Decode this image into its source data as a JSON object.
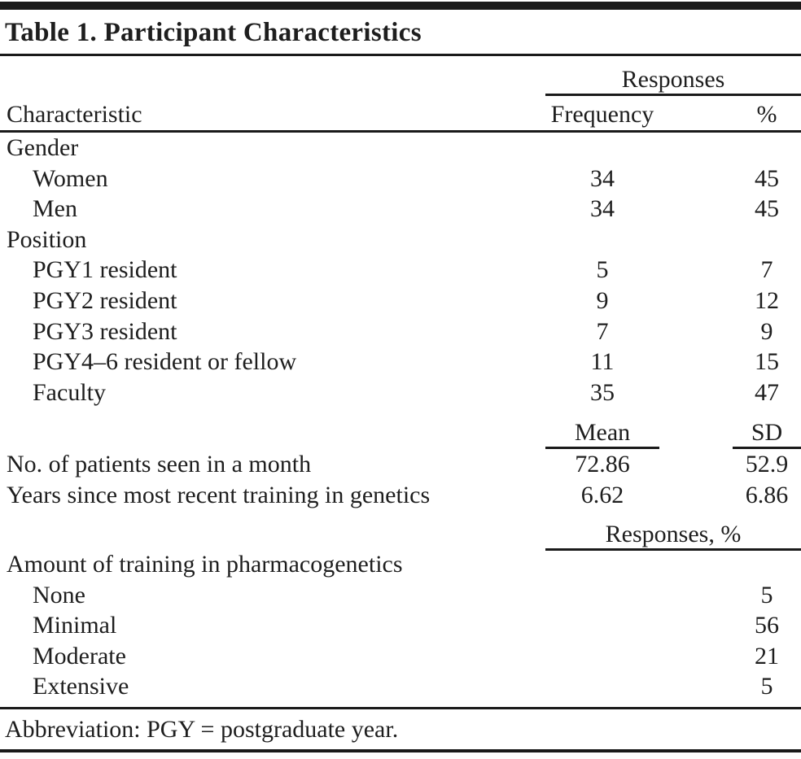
{
  "table": {
    "title": "Table 1. Participant Characteristics",
    "header": {
      "responses_spanner": "Responses",
      "characteristic": "Characteristic",
      "frequency": "Frequency",
      "percent": "%"
    },
    "gender": {
      "label": "Gender",
      "items": [
        {
          "label": "Women",
          "frequency": "34",
          "percent": "45"
        },
        {
          "label": "Men",
          "frequency": "34",
          "percent": "45"
        }
      ]
    },
    "position": {
      "label": "Position",
      "items": [
        {
          "label": "PGY1 resident",
          "frequency": "5",
          "percent": "7"
        },
        {
          "label": "PGY2 resident",
          "frequency": "9",
          "percent": "12"
        },
        {
          "label": "PGY3 resident",
          "frequency": "7",
          "percent": "9"
        },
        {
          "label": "PGY4–6 resident or fellow",
          "frequency": "11",
          "percent": "15"
        },
        {
          "label": "Faculty",
          "frequency": "35",
          "percent": "47"
        }
      ]
    },
    "means": {
      "mean_header": "Mean",
      "sd_header": "SD",
      "items": [
        {
          "label": "No. of patients seen in a month",
          "mean": "72.86",
          "sd": "52.9"
        },
        {
          "label": "Years since most recent training in genetics",
          "mean": "6.62",
          "sd": "6.86"
        }
      ]
    },
    "responses_pct": {
      "spanner": "Responses, %",
      "section_label": "Amount of training in pharmacogenetics",
      "items": [
        {
          "label": "None",
          "percent": "5"
        },
        {
          "label": "Minimal",
          "percent": "56"
        },
        {
          "label": "Moderate",
          "percent": "21"
        },
        {
          "label": "Extensive",
          "percent": "5"
        }
      ]
    },
    "footnote": "Abbreviation: PGY = postgraduate year."
  }
}
